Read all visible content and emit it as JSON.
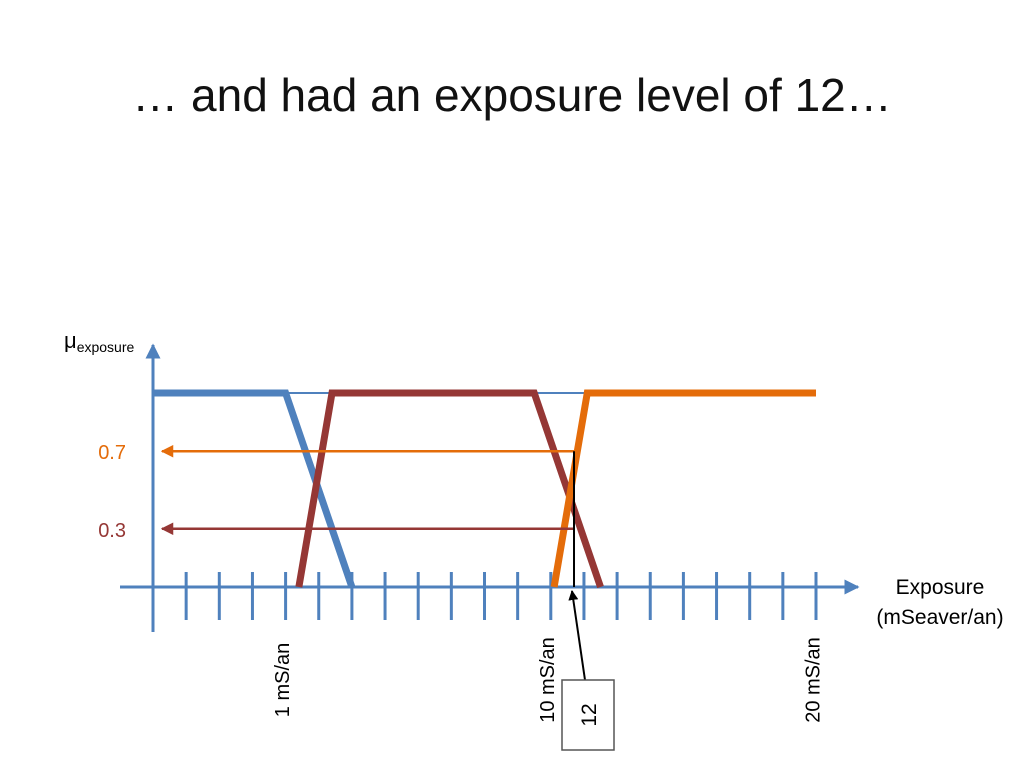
{
  "slide": {
    "title": "… and had an exposure level of 12…"
  },
  "chart_data": {
    "type": "line",
    "title": "",
    "ylabel_main": "μ",
    "ylabel_sub": "exposure",
    "xlabel_line1": "Exposure",
    "xlabel_line2": "(mSeaver/an)",
    "xlim": [
      0,
      20
    ],
    "ylim": [
      0,
      1
    ],
    "tick_step": 1,
    "tick_labels": [
      {
        "x": 4,
        "text": "1 mS/an"
      },
      {
        "x": 12,
        "text": "10 mS/an"
      },
      {
        "x": 20,
        "text": "20 mS/an"
      }
    ],
    "series": [
      {
        "color": "#4F81BD",
        "points": [
          [
            0,
            1
          ],
          [
            4,
            1
          ],
          [
            6,
            0
          ]
        ]
      },
      {
        "color": "#953735",
        "points": [
          [
            4.4,
            0
          ],
          [
            5.4,
            1
          ],
          [
            11.5,
            1
          ],
          [
            13.5,
            0
          ]
        ]
      },
      {
        "color": "#E46C0A",
        "points": [
          [
            12.1,
            0
          ],
          [
            13.1,
            1
          ],
          [
            20,
            1
          ]
        ]
      }
    ],
    "reference_line": {
      "y": 1,
      "color": "#4F81BD"
    },
    "annotations": [
      {
        "label": "0.7",
        "y": 0.7,
        "color": "#E46C0A"
      },
      {
        "label": "0.3",
        "y": 0.3,
        "color": "#953735"
      }
    ],
    "marker": {
      "x": 12.7,
      "label": "12",
      "color": "#000000"
    }
  }
}
